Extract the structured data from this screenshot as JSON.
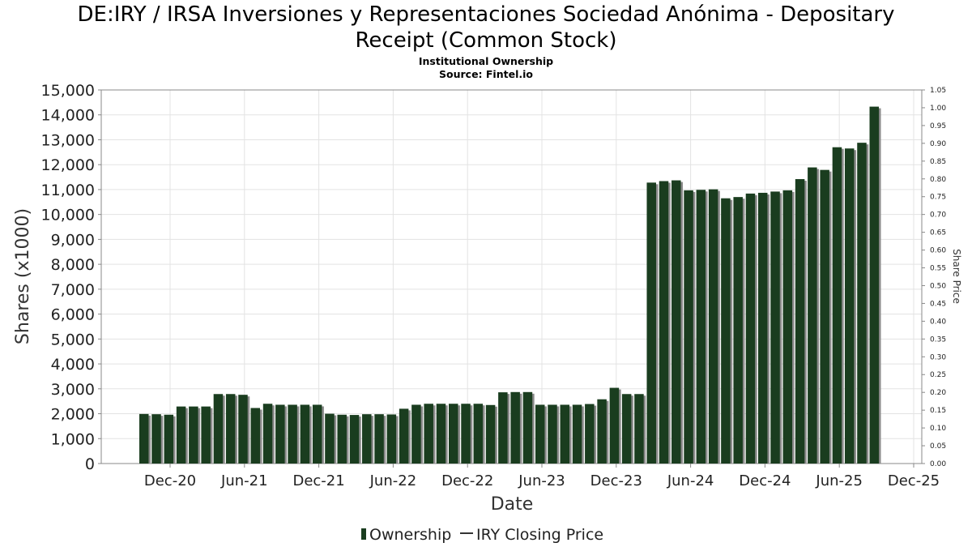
{
  "header": {
    "title_line1": "DE:IRY / IRSA Inversiones y Representaciones Sociedad Anónima - Depositary",
    "title_line2": "Receipt (Common Stock)",
    "subtitle_line1": "Institutional Ownership",
    "subtitle_line2": "Source: Fintel.io"
  },
  "chart_data": {
    "type": "bar",
    "title": "DE:IRY / IRSA Inversiones y Representaciones Sociedad Anónima - Depositary Receipt (Common Stock)",
    "subtitle": "Institutional Ownership",
    "source": "Source: Fintel.io",
    "xlabel": "Date",
    "ylabel": "Shares (x1000)",
    "y2label": "Share Price",
    "ylim": [
      0,
      15000
    ],
    "y2lim": [
      0,
      1.05
    ],
    "yticks": [
      "0",
      "1,000",
      "2,000",
      "3,000",
      "4,000",
      "5,000",
      "6,000",
      "7,000",
      "8,000",
      "9,000",
      "10,000",
      "11,000",
      "12,000",
      "13,000",
      "14,000",
      "15,000"
    ],
    "y2ticks": [
      "0.00",
      "0.05",
      "0.10",
      "0.15",
      "0.20",
      "0.25",
      "0.30",
      "0.35",
      "0.40",
      "0.45",
      "0.50",
      "0.55",
      "0.60",
      "0.65",
      "0.70",
      "0.75",
      "0.80",
      "0.85",
      "0.90",
      "0.95",
      "1.00",
      "1.05"
    ],
    "xticks": [
      "Dec-20",
      "Jun-21",
      "Dec-21",
      "Jun-22",
      "Dec-22",
      "Jun-23",
      "Dec-23",
      "Jun-24",
      "Dec-24",
      "Jun-25",
      "Dec-25"
    ],
    "grid": true,
    "legend_position": "bottom",
    "colors": {
      "bar": "#1a3d1f",
      "bar_shadow": "#8a8a8a",
      "grid": "#e3e3e3",
      "axis": "#888888"
    },
    "series": [
      {
        "name": "Ownership",
        "values": [
          1990,
          1980,
          1960,
          2290,
          2290,
          2290,
          2790,
          2790,
          2760,
          2230,
          2400,
          2360,
          2360,
          2360,
          2360,
          2000,
          1960,
          1950,
          1980,
          1980,
          1970,
          2200,
          2360,
          2400,
          2400,
          2400,
          2400,
          2400,
          2350,
          2860,
          2870,
          2870,
          2360,
          2360,
          2360,
          2360,
          2390,
          2580,
          3040,
          2790,
          2790,
          11280,
          11340,
          11370,
          10970,
          10990,
          11010,
          10650,
          10700,
          10840,
          10870,
          10920,
          10970,
          11420,
          11890,
          11790,
          12700,
          12650,
          12880,
          14330
        ]
      },
      {
        "name": "IRY Closing Price",
        "values": []
      }
    ]
  }
}
